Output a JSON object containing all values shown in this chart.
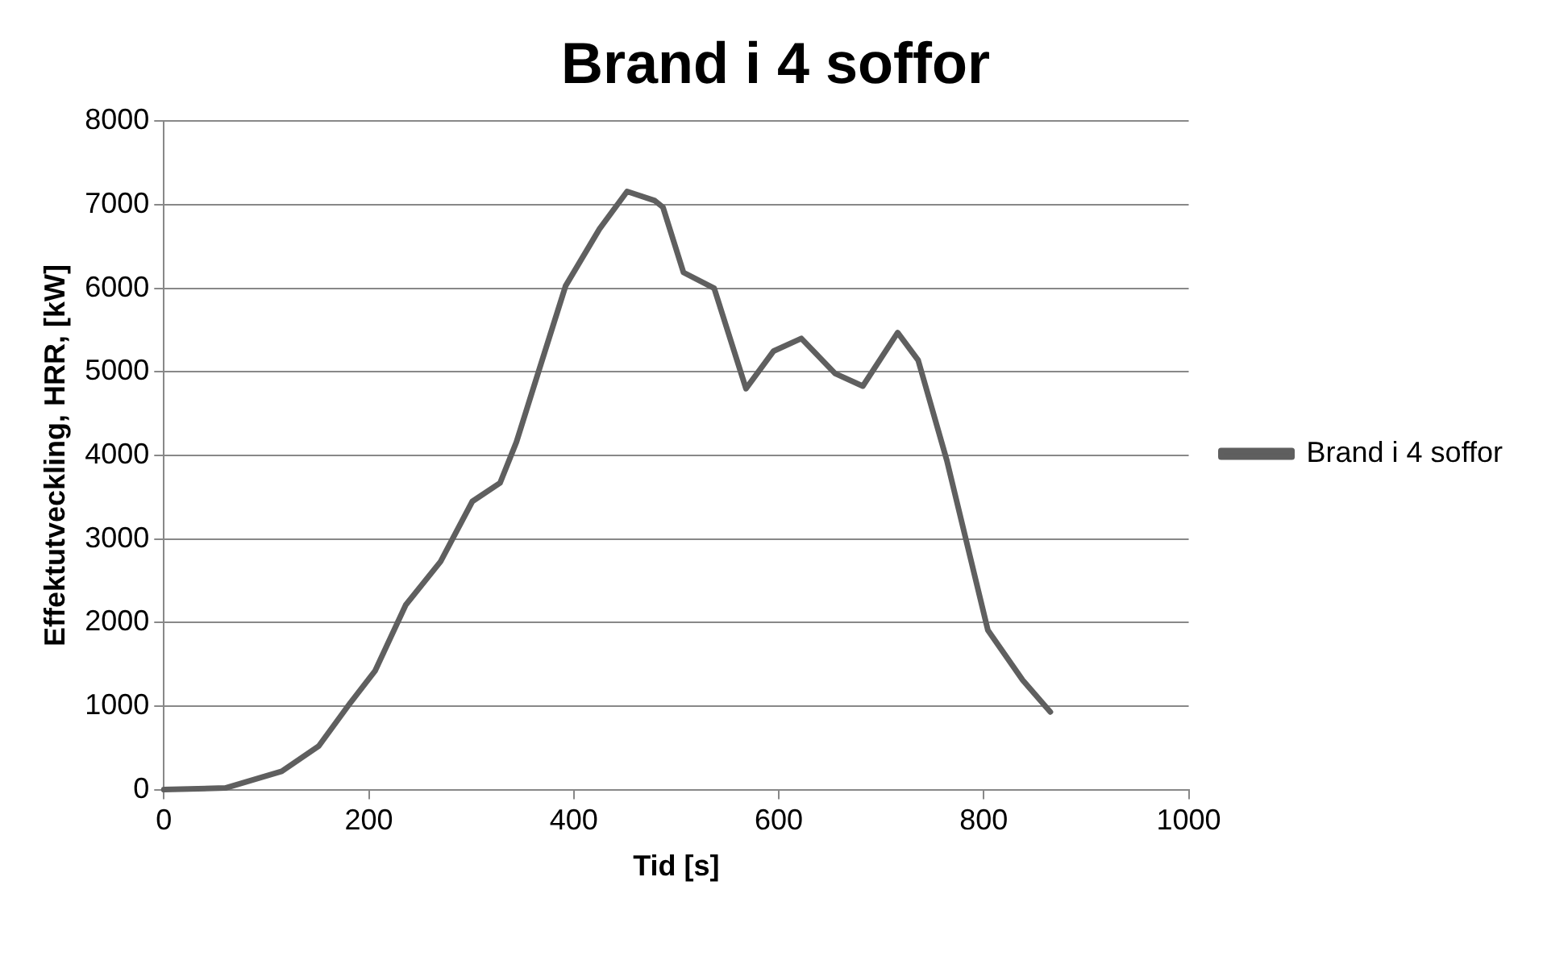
{
  "chart_data": {
    "type": "line",
    "title": "Brand i 4 soffor",
    "xlabel": "Tid [s]",
    "ylabel": "Effektutveckling, HRR, [kW]",
    "x": [
      0,
      60,
      115,
      151,
      182,
      206,
      236,
      270,
      301,
      328,
      344,
      365,
      392,
      425,
      452,
      479,
      487,
      507,
      537,
      568,
      595,
      622,
      655,
      682,
      716,
      736,
      764,
      804,
      838,
      865
    ],
    "series": [
      {
        "name": "Brand i 4 soffor",
        "color": "#5f5f5f",
        "values": [
          0,
          20,
          220,
          520,
          1040,
          1420,
          2210,
          2730,
          3450,
          3670,
          4160,
          4980,
          6030,
          6710,
          7160,
          7050,
          6970,
          6190,
          6000,
          4800,
          5250,
          5400,
          4980,
          4830,
          5470,
          5140,
          3940,
          1910,
          1310,
          930
        ]
      }
    ],
    "xlim": [
      0,
      1000
    ],
    "xticks": [
      0,
      200,
      400,
      600,
      800,
      1000
    ],
    "ylim": [
      0,
      8000
    ],
    "yticks": [
      0,
      1000,
      2000,
      3000,
      4000,
      5000,
      6000,
      7000,
      8000
    ],
    "grid": "y",
    "legend": "right",
    "marker": "none",
    "line_style": "solid"
  }
}
